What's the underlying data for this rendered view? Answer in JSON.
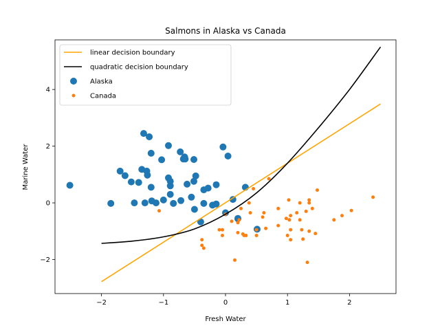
{
  "chart_data": {
    "type": "scatter",
    "title": "Salmons in Alaska vs Canada",
    "xlabel": "Fresh Water",
    "ylabel": "Marine Water",
    "xlim": [
      -2.75,
      2.75
    ],
    "ylim": [
      -3.2,
      5.75
    ],
    "xticks": [
      -2,
      -1,
      0,
      1,
      2
    ],
    "yticks": [
      -2,
      0,
      2,
      4
    ],
    "grid": false,
    "legend_position": "top-left",
    "series": [
      {
        "name": "Alaska",
        "kind": "scatter",
        "color": "#1f77b4",
        "size": "large",
        "points": [
          [
            -2.51,
            0.62
          ],
          [
            -1.85,
            -0.02
          ],
          [
            -1.7,
            1.12
          ],
          [
            -1.62,
            0.96
          ],
          [
            -1.52,
            0.74
          ],
          [
            -1.47,
            0.0
          ],
          [
            -1.4,
            0.72
          ],
          [
            -1.35,
            1.18
          ],
          [
            -1.32,
            2.45
          ],
          [
            -1.3,
            0.0
          ],
          [
            -1.27,
            1.12
          ],
          [
            -1.26,
            0.98
          ],
          [
            -1.23,
            2.33
          ],
          [
            -1.2,
            1.75
          ],
          [
            -1.2,
            0.55
          ],
          [
            -1.19,
            0.07
          ],
          [
            -1.12,
            0.0
          ],
          [
            -1.03,
            1.52
          ],
          [
            -1.0,
            0.1
          ],
          [
            -0.92,
            2.02
          ],
          [
            -0.92,
            0.88
          ],
          [
            -0.89,
            0.6
          ],
          [
            -0.89,
            0.3
          ],
          [
            -0.89,
            0.76
          ],
          [
            -0.84,
            -0.02
          ],
          [
            -0.73,
            1.8
          ],
          [
            -0.72,
            0.08
          ],
          [
            -0.68,
            1.55
          ],
          [
            -0.66,
            1.62
          ],
          [
            -0.65,
            1.55
          ],
          [
            -0.62,
            0.66
          ],
          [
            -0.55,
            0.2
          ],
          [
            -0.51,
            0.76
          ],
          [
            -0.51,
            1.53
          ],
          [
            -0.5,
            -0.23
          ],
          [
            -0.48,
            0.95
          ],
          [
            -0.4,
            -0.67
          ],
          [
            -0.35,
            0.46
          ],
          [
            -0.35,
            -0.02
          ],
          [
            -0.28,
            0.52
          ],
          [
            -0.21,
            -0.08
          ],
          [
            -0.15,
            -0.04
          ],
          [
            -0.15,
            0.64
          ],
          [
            -0.04,
            1.97
          ],
          [
            0.0,
            -0.35
          ],
          [
            0.04,
            1.65
          ],
          [
            0.12,
            0.12
          ],
          [
            0.2,
            -0.56
          ],
          [
            0.2,
            -0.55
          ],
          [
            0.32,
            0.55
          ],
          [
            0.51,
            -0.93
          ]
        ]
      },
      {
        "name": "Canada",
        "kind": "scatter",
        "color": "#ff7f0e",
        "size": "small",
        "points": [
          [
            -1.07,
            -0.28
          ],
          [
            -0.38,
            -1.3
          ],
          [
            -0.38,
            -1.5
          ],
          [
            -0.35,
            -1.6
          ],
          [
            -0.1,
            -0.95
          ],
          [
            -0.05,
            -1.15
          ],
          [
            -0.05,
            -0.95
          ],
          [
            0.0,
            -0.4
          ],
          [
            0.1,
            -0.65
          ],
          [
            0.15,
            -2.02
          ],
          [
            0.2,
            -0.7
          ],
          [
            0.2,
            -1.05
          ],
          [
            0.22,
            -0.6
          ],
          [
            0.25,
            -0.2
          ],
          [
            0.28,
            -1.1
          ],
          [
            0.3,
            -1.15
          ],
          [
            0.33,
            -1.15
          ],
          [
            0.38,
            0.0
          ],
          [
            0.4,
            -0.35
          ],
          [
            0.45,
            0.5
          ],
          [
            0.5,
            -0.95
          ],
          [
            0.5,
            -1.15
          ],
          [
            0.6,
            -0.5
          ],
          [
            0.62,
            -0.35
          ],
          [
            0.65,
            -0.9
          ],
          [
            0.7,
            0.85
          ],
          [
            0.85,
            -0.2
          ],
          [
            0.85,
            -0.8
          ],
          [
            0.98,
            -0.55
          ],
          [
            1.0,
            -1.15
          ],
          [
            1.02,
            0.1
          ],
          [
            1.03,
            -0.6
          ],
          [
            1.05,
            -0.45
          ],
          [
            1.05,
            -1.3
          ],
          [
            1.05,
            -0.95
          ],
          [
            1.15,
            -0.35
          ],
          [
            1.2,
            -0.6
          ],
          [
            1.2,
            0.0
          ],
          [
            1.23,
            -0.95
          ],
          [
            1.25,
            -1.28
          ],
          [
            1.3,
            -0.3
          ],
          [
            1.32,
            -2.1
          ],
          [
            1.35,
            0.0
          ],
          [
            1.35,
            0.1
          ],
          [
            1.35,
            -1.0
          ],
          [
            1.4,
            -0.2
          ],
          [
            1.45,
            -1.08
          ],
          [
            1.48,
            0.45
          ],
          [
            1.75,
            -0.6
          ],
          [
            1.88,
            -0.45
          ],
          [
            2.03,
            -0.27
          ],
          [
            2.38,
            0.2
          ]
        ]
      }
    ],
    "lines": [
      {
        "name": "linear decision boundary",
        "color": "#ffa500",
        "x_range": [
          -2,
          2.5
        ],
        "y_start": -2.78,
        "y_end": 3.49
      },
      {
        "name": "quadratic decision boundary",
        "color": "#000000",
        "x_range": [
          -2,
          2.5
        ],
        "points": [
          [
            -2.0,
            -1.43
          ],
          [
            -1.5,
            -1.35
          ],
          [
            -1.0,
            -1.2
          ],
          [
            -0.5,
            -0.92
          ],
          [
            0.0,
            -0.4
          ],
          [
            0.5,
            0.35
          ],
          [
            1.0,
            1.4
          ],
          [
            1.5,
            2.65
          ],
          [
            2.0,
            4.0
          ],
          [
            2.5,
            5.5
          ]
        ]
      }
    ]
  }
}
